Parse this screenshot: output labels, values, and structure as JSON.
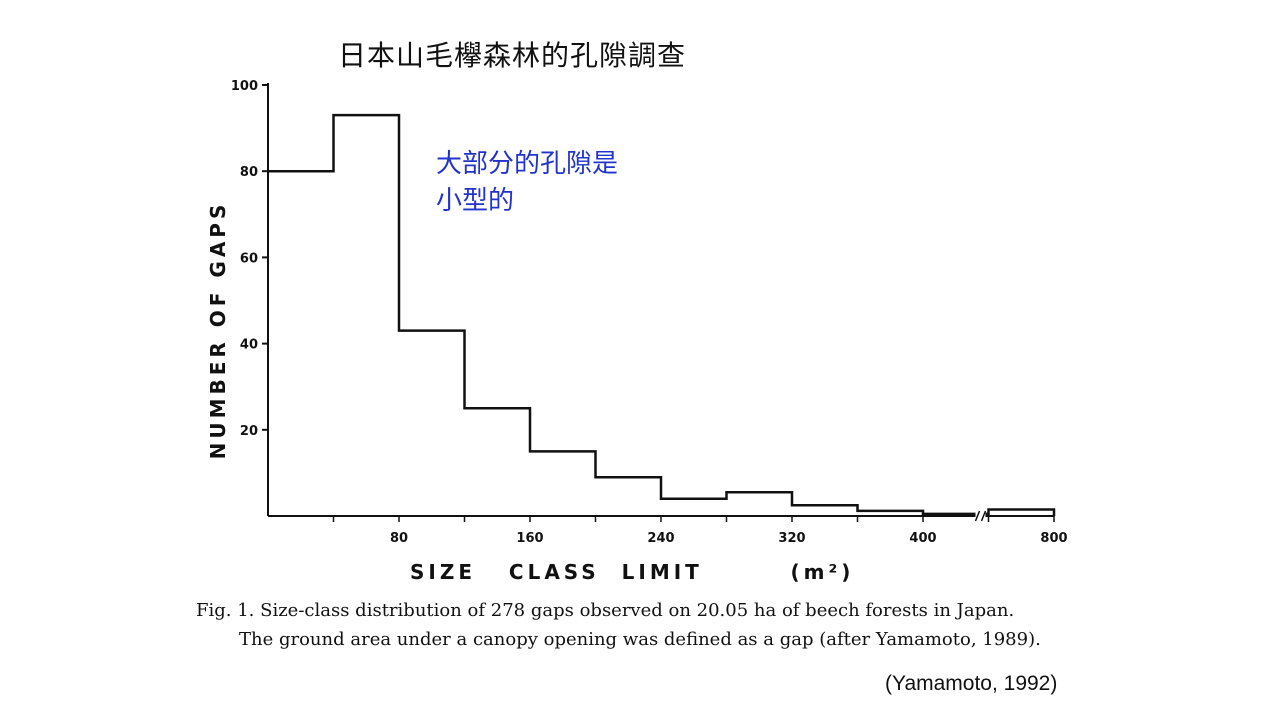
{
  "slide": {
    "title": "日本山毛欅森林的孔隙調查",
    "annotation_line1": "大部分的孔隙是",
    "annotation_line2": "小型的",
    "caption_line1": "Fig. 1.   Size-class distribution of 278 gaps observed on 20.05 ha of beech forests in Japan.",
    "caption_line2": "The ground area under a canopy opening was defined as a gap (after Yamamoto, 1989).",
    "source": "(Yamamoto, 1992)"
  },
  "chart_data": {
    "type": "bar",
    "title": "",
    "xlabel": "SIZE   CLASS  LIMIT",
    "xunit": "(m²)",
    "ylabel": "NUMBER  OF  GAPS",
    "ylim": [
      0,
      100
    ],
    "yticks": [
      20,
      40,
      60,
      80,
      100
    ],
    "xtick_labels": [
      "80",
      "160",
      "240",
      "320",
      "400",
      "800"
    ],
    "axis_break_between": [
      "400",
      "800"
    ],
    "bins": [
      {
        "from": 0,
        "to": 40,
        "value": 80
      },
      {
        "from": 40,
        "to": 80,
        "value": 93
      },
      {
        "from": 80,
        "to": 120,
        "value": 43
      },
      {
        "from": 120,
        "to": 160,
        "value": 25
      },
      {
        "from": 160,
        "to": 200,
        "value": 15
      },
      {
        "from": 200,
        "to": 240,
        "value": 9
      },
      {
        "from": 240,
        "to": 280,
        "value": 4
      },
      {
        "from": 280,
        "to": 320,
        "value": 5.5
      },
      {
        "from": 320,
        "to": 360,
        "value": 2.5
      },
      {
        "from": 360,
        "to": 400,
        "value": 1.2
      },
      {
        "from": 400,
        "to": 440,
        "value": 0.5
      },
      {
        "from": 760,
        "to": 800,
        "value": 1.5
      }
    ],
    "grid": false,
    "legend": "none"
  }
}
